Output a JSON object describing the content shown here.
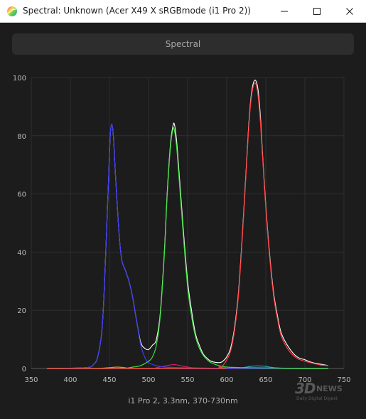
{
  "window": {
    "title": "Spectral: Unknown (Acer X49 X sRGBmode (i1 Pro 2))",
    "app_icon": "colorful-sphere-icon",
    "controls": [
      "minimize-icon",
      "maximize-icon",
      "close-icon"
    ]
  },
  "tab": {
    "label": "Spectral"
  },
  "footer": {
    "label": "i1 Pro 2, 3.3nm, 370-730nm"
  },
  "watermark": {
    "big": "3D",
    "news": "NEWS",
    "sub": "Daily Digital Digest"
  },
  "colors": {
    "background": "#1c1c1c",
    "blue": "#3c3cff",
    "green": "#3ce03c",
    "red": "#ff3c3c",
    "total": "#ffffff",
    "magenta": "#d02070",
    "cyan": "#20b0b0",
    "orange": "#d0a020"
  },
  "chart_data": {
    "type": "line",
    "xlim": [
      350,
      750
    ],
    "ylim": [
      0,
      100
    ],
    "x_ticks": [
      350,
      400,
      450,
      500,
      550,
      600,
      650,
      700,
      750
    ],
    "y_ticks": [
      0,
      20,
      40,
      60,
      80,
      100
    ],
    "grid": true,
    "series": [
      {
        "key": "blue",
        "x": [
          370,
          420,
          430,
          435,
          440,
          443,
          446,
          449,
          451,
          453,
          455,
          457,
          460,
          463,
          466,
          470,
          475,
          480,
          485,
          490,
          495,
          500,
          510,
          520,
          540,
          560,
          580,
          600,
          650,
          700,
          730
        ],
        "y": [
          0,
          0.3,
          1.5,
          4,
          12,
          25,
          45,
          66,
          80,
          84,
          80,
          70,
          56,
          44,
          37,
          34,
          30,
          24,
          16,
          8,
          4,
          2,
          1,
          0.5,
          0.3,
          0.2,
          0.1,
          0.1,
          0,
          0,
          0
        ]
      },
      {
        "key": "green",
        "x": [
          370,
          460,
          480,
          490,
          500,
          505,
          510,
          515,
          520,
          524,
          528,
          531,
          533,
          536,
          540,
          545,
          550,
          555,
          560,
          565,
          570,
          575,
          580,
          590,
          600,
          620,
          650,
          700,
          730
        ],
        "y": [
          0,
          0,
          0.5,
          1,
          2.5,
          4,
          8,
          18,
          38,
          60,
          76,
          82,
          82,
          76,
          62,
          44,
          28,
          18,
          11,
          7,
          4.5,
          3,
          2,
          1,
          0.5,
          0.3,
          0.2,
          0,
          0
        ]
      },
      {
        "key": "red",
        "x": [
          370,
          580,
          590,
          595,
          600,
          605,
          610,
          615,
          620,
          625,
          628,
          631,
          634,
          637,
          640,
          643,
          646,
          650,
          655,
          660,
          665,
          670,
          680,
          690,
          700,
          710,
          720,
          730
        ],
        "y": [
          0,
          0,
          0.5,
          1,
          3,
          6,
          13,
          25,
          45,
          68,
          82,
          92,
          97,
          98,
          94,
          85,
          72,
          55,
          38,
          25,
          17,
          11,
          6,
          3.5,
          2.5,
          1.8,
          1.2,
          1
        ]
      },
      {
        "key": "total",
        "x": [
          370,
          420,
          430,
          435,
          440,
          443,
          446,
          449,
          451,
          453,
          455,
          457,
          460,
          463,
          466,
          470,
          475,
          480,
          485,
          490,
          495,
          500,
          505,
          510,
          515,
          520,
          524,
          528,
          531,
          533,
          536,
          540,
          545,
          550,
          555,
          560,
          565,
          570,
          575,
          580,
          590,
          595,
          600,
          605,
          610,
          615,
          620,
          625,
          628,
          631,
          634,
          637,
          640,
          643,
          646,
          650,
          655,
          660,
          665,
          670,
          680,
          690,
          700,
          710,
          720,
          730
        ],
        "y": [
          0,
          0.3,
          1.5,
          4,
          12,
          25,
          45,
          66,
          80,
          84,
          80,
          70,
          56,
          44,
          37,
          34,
          30,
          24,
          16,
          9,
          7,
          6.5,
          8,
          10,
          19,
          39,
          61,
          77,
          83,
          84,
          78,
          64,
          46,
          30,
          20,
          12,
          8,
          5,
          3.5,
          2.5,
          2,
          2.5,
          4,
          7,
          14,
          26,
          46,
          69,
          83,
          93,
          98,
          99,
          96,
          87,
          73,
          56,
          39,
          26,
          18,
          12,
          7,
          4,
          3,
          2,
          1.5,
          1
        ]
      },
      {
        "key": "magenta",
        "x": [
          370,
          500,
          510,
          520,
          530,
          535,
          540,
          550,
          560,
          580,
          600,
          730
        ],
        "y": [
          0,
          0,
          0.3,
          0.8,
          1.3,
          1.3,
          1,
          0.5,
          0.2,
          0,
          0,
          0
        ]
      },
      {
        "key": "cyan",
        "x": [
          370,
          600,
          620,
          630,
          640,
          650,
          660,
          680,
          730
        ],
        "y": [
          0,
          0,
          0.3,
          0.7,
          0.9,
          0.7,
          0.3,
          0,
          0
        ]
      },
      {
        "key": "orange",
        "x": [
          370,
          430,
          450,
          460,
          470,
          490,
          730
        ],
        "y": [
          0,
          0,
          0.3,
          0.5,
          0.3,
          0,
          0
        ]
      }
    ]
  }
}
